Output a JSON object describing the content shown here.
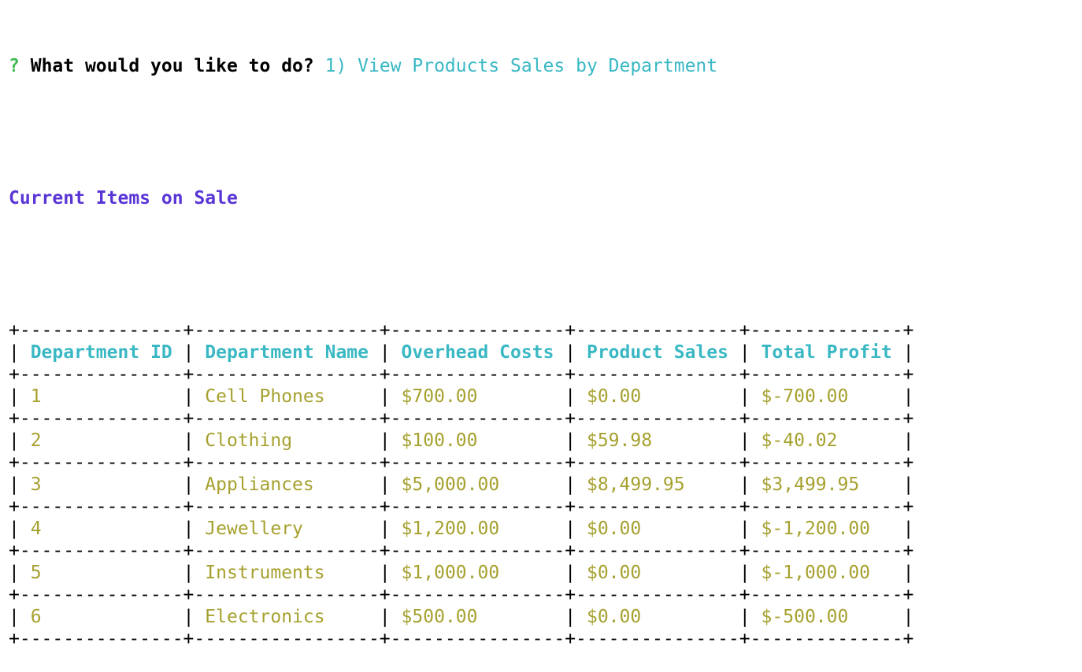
{
  "prompt": {
    "marker": "?",
    "question": "What would you like to do?",
    "answer": "1) View Products Sales by Department"
  },
  "section_title": "Current Items on Sale",
  "table": {
    "columns": [
      {
        "label": "Department ID",
        "width": 15
      },
      {
        "label": "Department Name",
        "width": 17
      },
      {
        "label": "Overhead Costs",
        "width": 16
      },
      {
        "label": "Product Sales",
        "width": 15
      },
      {
        "label": "Total Profit",
        "width": 14
      }
    ],
    "rows": [
      [
        "1",
        "Cell Phones",
        "$700.00",
        "$0.00",
        "$-700.00"
      ],
      [
        "2",
        "Clothing",
        "$100.00",
        "$59.98",
        "$-40.02"
      ],
      [
        "3",
        "Appliances",
        "$5,000.00",
        "$8,499.95",
        "$3,499.95"
      ],
      [
        "4",
        "Jewellery",
        "$1,200.00",
        "$0.00",
        "$-1,200.00"
      ],
      [
        "5",
        "Instruments",
        "$1,000.00",
        "$0.00",
        "$-1,000.00"
      ],
      [
        "6",
        "Electronics",
        "$500.00",
        "$0.00",
        "$-500.00"
      ]
    ]
  },
  "colors": {
    "prompt_marker": "#3fb950",
    "answer": "#39b8c4",
    "heading": "#5a35d6",
    "header_text": "#39b8c4",
    "cell_text": "#a6a12f",
    "border": "#000000"
  }
}
